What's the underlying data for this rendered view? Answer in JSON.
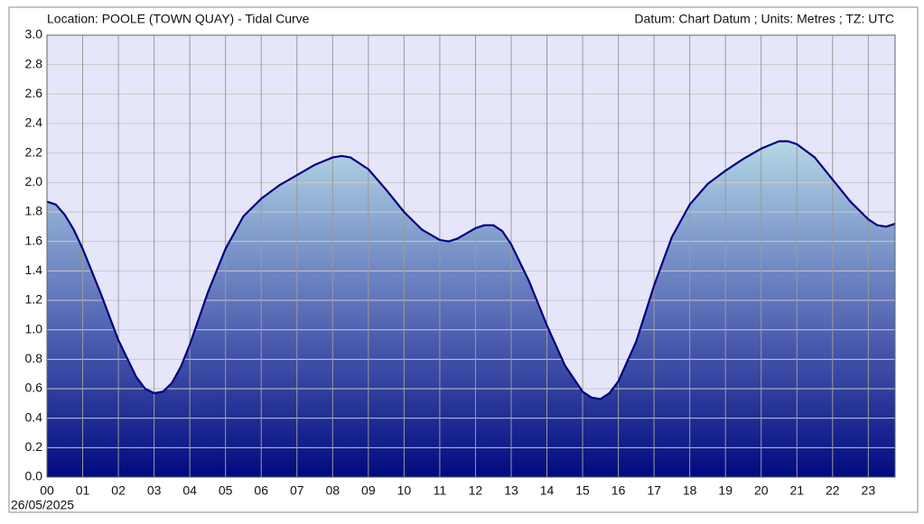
{
  "chart_data": {
    "type": "area",
    "title": "Location: POOLE (TOWN QUAY) - Tidal Curve",
    "subtitle": "Datum: Chart Datum ; Units: Metres ; TZ: UTC",
    "date": "26/05/2025",
    "grid": true,
    "background": "#e6e6fa",
    "xlim": [
      0,
      23.75
    ],
    "xticks": [
      {
        "value": 0,
        "label": "00"
      },
      {
        "value": 1,
        "label": "01"
      },
      {
        "value": 2,
        "label": "02"
      },
      {
        "value": 3,
        "label": "03"
      },
      {
        "value": 4,
        "label": "04"
      },
      {
        "value": 5,
        "label": "05"
      },
      {
        "value": 6,
        "label": "06"
      },
      {
        "value": 7,
        "label": "07"
      },
      {
        "value": 8,
        "label": "08"
      },
      {
        "value": 9,
        "label": "09"
      },
      {
        "value": 10,
        "label": "10"
      },
      {
        "value": 11,
        "label": "11"
      },
      {
        "value": 12,
        "label": "12"
      },
      {
        "value": 13,
        "label": "13"
      },
      {
        "value": 14,
        "label": "14"
      },
      {
        "value": 15,
        "label": "15"
      },
      {
        "value": 16,
        "label": "16"
      },
      {
        "value": 17,
        "label": "17"
      },
      {
        "value": 18,
        "label": "18"
      },
      {
        "value": 19,
        "label": "19"
      },
      {
        "value": 20,
        "label": "20"
      },
      {
        "value": 21,
        "label": "21"
      },
      {
        "value": 22,
        "label": "22"
      },
      {
        "value": 23,
        "label": "23"
      }
    ],
    "ylim": [
      0,
      3
    ],
    "yticks": [
      {
        "value": 0,
        "label": "0.0"
      },
      0.2,
      0.4,
      0.6,
      0.8,
      {
        "value": 1,
        "label": "1.0"
      },
      1.2,
      1.4,
      1.6,
      1.8,
      {
        "value": 2,
        "label": "2.0"
      },
      2.2,
      2.4,
      2.6,
      2.8,
      {
        "value": 3,
        "label": "3.0"
      }
    ],
    "series": [
      {
        "color": "#000080",
        "x": [
          0,
          0.25,
          0.5,
          0.75,
          1,
          1.5,
          2,
          2.5,
          2.75,
          3,
          3.25,
          3.5,
          3.75,
          4,
          4.5,
          5,
          5.5,
          6,
          6.5,
          7,
          7.5,
          8,
          8.25,
          8.5,
          9,
          9.5,
          10,
          10.5,
          11,
          11.25,
          11.5,
          12,
          12.25,
          12.5,
          12.75,
          13,
          13.5,
          14,
          14.5,
          15,
          15.25,
          15.5,
          15.75,
          16,
          16.5,
          17,
          17.5,
          18,
          18.5,
          19,
          19.5,
          20,
          20.5,
          20.75,
          21,
          21.5,
          22,
          22.5,
          23,
          23.25,
          23.5,
          23.75
        ],
        "values": [
          1.87,
          1.85,
          1.78,
          1.68,
          1.55,
          1.25,
          0.93,
          0.68,
          0.6,
          0.57,
          0.58,
          0.64,
          0.75,
          0.9,
          1.25,
          1.55,
          1.77,
          1.89,
          1.98,
          2.05,
          2.12,
          2.17,
          2.18,
          2.17,
          2.09,
          1.95,
          1.8,
          1.68,
          1.61,
          1.6,
          1.62,
          1.69,
          1.71,
          1.71,
          1.67,
          1.58,
          1.33,
          1.03,
          0.76,
          0.58,
          0.54,
          0.53,
          0.57,
          0.65,
          0.92,
          1.3,
          1.63,
          1.85,
          1.99,
          2.08,
          2.16,
          2.23,
          2.28,
          2.28,
          2.26,
          2.17,
          2.02,
          1.87,
          1.75,
          1.71,
          1.7,
          1.72
        ]
      }
    ]
  }
}
